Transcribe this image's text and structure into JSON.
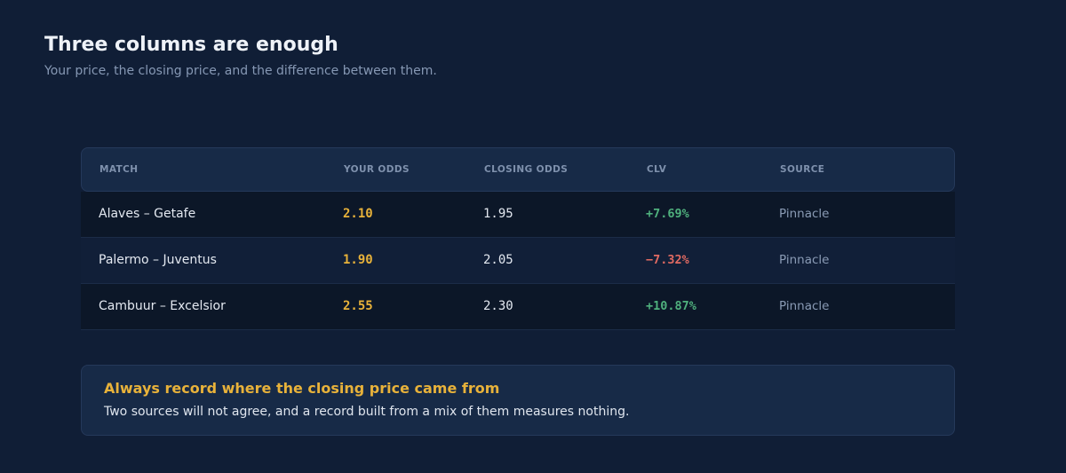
{
  "header": {
    "title": "Three columns are enough",
    "subtitle": "Your price, the closing price, and the difference between them."
  },
  "table": {
    "columns": [
      "MATCH",
      "YOUR ODDS",
      "CLOSING ODDS",
      "CLV",
      "SOURCE"
    ],
    "rows": [
      {
        "match": "Alaves – Getafe",
        "your_odds": "2.10",
        "closing_odds": "1.95",
        "clv": "+7.69%",
        "clv_sign": "positive",
        "source": "Pinnacle"
      },
      {
        "match": "Palermo – Juventus",
        "your_odds": "1.90",
        "closing_odds": "2.05",
        "clv": "−7.32%",
        "clv_sign": "negative",
        "source": "Pinnacle"
      },
      {
        "match": "Cambuur – Excelsior",
        "your_odds": "2.55",
        "closing_odds": "2.30",
        "clv": "+10.87%",
        "clv_sign": "positive",
        "source": "Pinnacle"
      }
    ]
  },
  "note": {
    "title": "Always record where the closing price came from",
    "body": "Two sources will not agree, and a record built from a mix of them measures nothing."
  },
  "colors": {
    "background": "#101e36",
    "accent": "#e8b23a",
    "positive": "#4fb07d",
    "negative": "#e06a62"
  }
}
